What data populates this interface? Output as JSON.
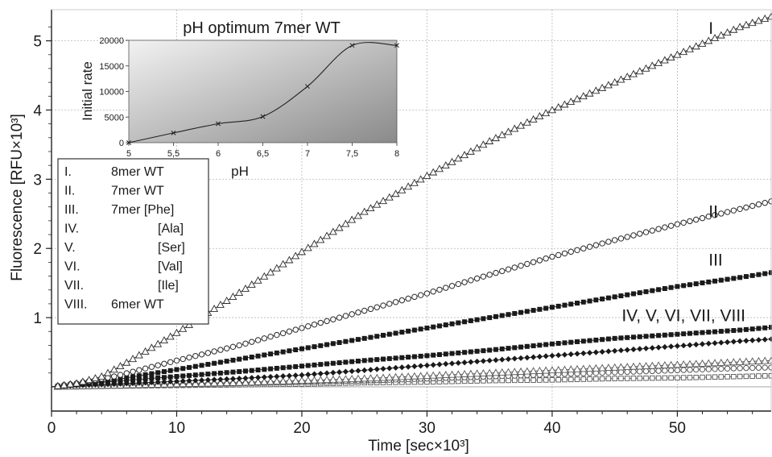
{
  "chart_data": [
    {
      "type": "scatter",
      "title": "",
      "xlabel": "Time [sec×10³]",
      "ylabel": "Fluorescence [RFU×10³]",
      "xlim": [
        0,
        57.5
      ],
      "ylim": [
        -0.35,
        5.45
      ],
      "x_ticks": [
        "0",
        "10",
        "20",
        "30",
        "40",
        "50"
      ],
      "y_ticks": [
        "1",
        "2",
        "3",
        "4",
        "5"
      ],
      "grid": "dotted",
      "legend_position": "left",
      "legend": [
        {
          "numeral": "I.",
          "text": "8mer WT"
        },
        {
          "numeral": "II.",
          "text": "7mer WT"
        },
        {
          "numeral": "III.",
          "text": "7mer [Phe]"
        },
        {
          "numeral": "IV.",
          "text": "[Ala]"
        },
        {
          "numeral": "V.",
          "text": "[Ser]"
        },
        {
          "numeral": "VI.",
          "text": "[Val]"
        },
        {
          "numeral": "VII.",
          "text": "[Ile]"
        },
        {
          "numeral": "VIII.",
          "text": "6mer WT"
        }
      ],
      "curve_labels": [
        {
          "text": "I",
          "x": 52.5,
          "y": 5.1
        },
        {
          "text": "II",
          "x": 52.5,
          "y": 2.45
        },
        {
          "text": "III",
          "x": 52.5,
          "y": 1.75
        },
        {
          "text": "IV, V, VI, VII, VIII",
          "x": 50.5,
          "y": 0.95
        }
      ],
      "series": [
        {
          "name": "I",
          "marker": "triangle-open",
          "color": "#2a2a2a",
          "x": [
            0,
            2,
            4,
            6,
            10,
            15,
            20,
            25,
            30,
            35,
            40,
            45,
            50,
            55,
            57.5
          ],
          "y": [
            0,
            0.05,
            0.15,
            0.35,
            0.78,
            1.36,
            1.95,
            2.53,
            3.05,
            3.55,
            4.0,
            4.4,
            4.8,
            5.2,
            5.35
          ]
        },
        {
          "name": "II",
          "marker": "circle-open",
          "color": "#2a2a2a",
          "x": [
            0,
            2,
            5,
            10,
            15,
            20,
            25,
            30,
            35,
            40,
            45,
            50,
            55,
            57.5
          ],
          "y": [
            0,
            0.05,
            0.15,
            0.38,
            0.6,
            0.85,
            1.1,
            1.35,
            1.62,
            1.88,
            2.12,
            2.35,
            2.57,
            2.68
          ]
        },
        {
          "name": "III",
          "marker": "square-filled",
          "color": "#1a1a1a",
          "x": [
            0,
            2,
            5,
            10,
            15,
            20,
            25,
            30,
            35,
            40,
            45,
            50,
            55,
            57.5
          ],
          "y": [
            0,
            0.03,
            0.1,
            0.25,
            0.4,
            0.55,
            0.7,
            0.85,
            1.0,
            1.15,
            1.3,
            1.45,
            1.58,
            1.65
          ]
        },
        {
          "name": "IV",
          "marker": "square-filled",
          "color": "#1a1a1a",
          "x": [
            0,
            2,
            5,
            10,
            15,
            20,
            25,
            30,
            35,
            40,
            45,
            50,
            55,
            57.5
          ],
          "y": [
            0,
            0.03,
            0.08,
            0.15,
            0.22,
            0.3,
            0.38,
            0.45,
            0.53,
            0.62,
            0.7,
            0.76,
            0.82,
            0.86
          ]
        },
        {
          "name": "V",
          "marker": "diamond-filled",
          "color": "#1a1a1a",
          "x": [
            0,
            2,
            5,
            10,
            15,
            20,
            25,
            30,
            35,
            40,
            45,
            50,
            55,
            57.5
          ],
          "y": [
            0,
            0.02,
            0.04,
            0.08,
            0.12,
            0.17,
            0.24,
            0.31,
            0.38,
            0.45,
            0.52,
            0.59,
            0.66,
            0.69
          ]
        },
        {
          "name": "VI",
          "marker": "triangle-open",
          "color": "#555555",
          "x": [
            0,
            2,
            5,
            10,
            15,
            20,
            25,
            30,
            35,
            40,
            45,
            50,
            55,
            57.5
          ],
          "y": [
            0,
            0.01,
            0.02,
            0.04,
            0.06,
            0.09,
            0.12,
            0.16,
            0.2,
            0.24,
            0.28,
            0.32,
            0.36,
            0.38
          ]
        },
        {
          "name": "VII",
          "marker": "circle-open",
          "color": "#555555",
          "x": [
            0,
            2,
            5,
            10,
            15,
            20,
            25,
            30,
            35,
            40,
            45,
            50,
            55,
            57.5
          ],
          "y": [
            0,
            0.01,
            0.02,
            0.03,
            0.05,
            0.07,
            0.09,
            0.12,
            0.15,
            0.18,
            0.21,
            0.24,
            0.27,
            0.28
          ]
        },
        {
          "name": "VIII",
          "marker": "square-open",
          "color": "#555555",
          "x": [
            0,
            2,
            5,
            10,
            15,
            20,
            25,
            30,
            35,
            40,
            45,
            50,
            55,
            57.5
          ],
          "y": [
            0,
            0.0,
            0.01,
            0.02,
            0.03,
            0.04,
            0.06,
            0.07,
            0.09,
            0.1,
            0.12,
            0.13,
            0.15,
            0.16
          ]
        }
      ]
    },
    {
      "type": "line",
      "title": "pH optimum 7mer WT",
      "xlabel": "pH",
      "ylabel": "Initial rate",
      "xlim": [
        5,
        8
      ],
      "ylim": [
        0,
        20000
      ],
      "x_ticks": [
        "5",
        "5,5",
        "6",
        "6,5",
        "7",
        "7,5",
        "8"
      ],
      "y_ticks": [
        "0",
        "5000",
        "10000",
        "15000",
        "20000"
      ],
      "background": "gradient-gray",
      "series": [
        {
          "name": "7mer WT",
          "marker": "x",
          "color": "#222222",
          "x": [
            5,
            5.5,
            6,
            6.5,
            7,
            7.5,
            8
          ],
          "y": [
            0,
            1900,
            3700,
            5100,
            11000,
            19000,
            19000
          ]
        }
      ]
    }
  ]
}
